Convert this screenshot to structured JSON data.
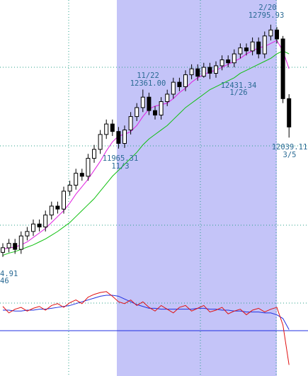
{
  "chart_data": [
    {
      "type": "candlestick",
      "categories": [
        null,
        null,
        null,
        null,
        null,
        null,
        null,
        null,
        null,
        null,
        null,
        null,
        null,
        null,
        null,
        null,
        null,
        null,
        null,
        null,
        null,
        null,
        null,
        null,
        null,
        null,
        null,
        null,
        null,
        null,
        null,
        null,
        null,
        null,
        null,
        null,
        null,
        null,
        null,
        null,
        null,
        null,
        null,
        null,
        null,
        null,
        null,
        null
      ],
      "open": [
        11270,
        11300,
        11330,
        11290,
        11380,
        11410,
        11460,
        11440,
        11520,
        11580,
        11560,
        11680,
        11720,
        11800,
        11780,
        11900,
        11960,
        12060,
        12130,
        12080,
        12000,
        12090,
        12180,
        12240,
        12310,
        12220,
        12190,
        12280,
        12330,
        12410,
        12380,
        12460,
        12500,
        12450,
        12510,
        12470,
        12520,
        12560,
        12540,
        12600,
        12640,
        12620,
        12680,
        12600,
        12720,
        12760,
        12700,
        12300
      ],
      "high": [
        11331,
        11360,
        11360,
        11410,
        11440,
        11490,
        11490,
        11550,
        11610,
        11610,
        11710,
        11750,
        11830,
        11830,
        11930,
        11990,
        12090,
        12160,
        12160,
        12110,
        12120,
        12210,
        12270,
        12361.0,
        12340,
        12250,
        12310,
        12360,
        12440,
        12440,
        12490,
        12530,
        12530,
        12540,
        12540,
        12550,
        12590,
        12590,
        12630,
        12670,
        12670,
        12710,
        12710,
        12750,
        12795.93,
        12780,
        12720,
        12330
      ],
      "low": [
        11240,
        11270,
        11260,
        11260,
        11350,
        11380,
        11410,
        11410,
        11490,
        11530,
        11530,
        11650,
        11690,
        11750,
        11750,
        11870,
        11930,
        12030,
        12050,
        11965.31,
        11970,
        12060,
        12150,
        12210,
        12190,
        12160,
        12160,
        12250,
        12300,
        12350,
        12350,
        12430,
        12420,
        12440,
        12431.34,
        12440,
        12490,
        12510,
        12510,
        12570,
        12590,
        12590,
        12570,
        12570,
        12690,
        12670,
        12270,
        12039.11
      ],
      "close": [
        11301,
        11330,
        11290,
        11380,
        11410,
        11460,
        11440,
        11520,
        11580,
        11560,
        11680,
        11720,
        11800,
        11780,
        11900,
        11960,
        12060,
        12130,
        12080,
        12000,
        12090,
        12180,
        12240,
        12310,
        12220,
        12190,
        12280,
        12330,
        12410,
        12380,
        12460,
        12500,
        12450,
        12510,
        12470,
        12520,
        12560,
        12540,
        12600,
        12640,
        12620,
        12680,
        12600,
        12720,
        12760,
        12700,
        12300,
        12110
      ],
      "overlays": [
        {
          "color": "#e020e0",
          "values": [
            11290,
            11300,
            11305,
            11320,
            11340,
            11370,
            11400,
            11430,
            11470,
            11510,
            11550,
            11600,
            11660,
            11710,
            11760,
            11820,
            11880,
            11950,
            12010,
            12050,
            12060,
            12080,
            12120,
            12180,
            12230,
            12250,
            12260,
            12270,
            12300,
            12340,
            12370,
            12410,
            12440,
            12460,
            12480,
            12490,
            12510,
            12530,
            12550,
            12570,
            12600,
            12620,
            12640,
            12650,
            12670,
            12690,
            12620,
            12500
          ]
        },
        {
          "color": "#10c010",
          "values": [
            11250,
            11265,
            11275,
            11290,
            11305,
            11320,
            11340,
            11360,
            11385,
            11410,
            11440,
            11470,
            11510,
            11550,
            11590,
            11630,
            11680,
            11730,
            11780,
            11820,
            11860,
            11900,
            11940,
            11990,
            12030,
            12060,
            12090,
            12120,
            12160,
            12200,
            12240,
            12270,
            12300,
            12330,
            12360,
            12380,
            12400,
            12420,
            12440,
            12470,
            12490,
            12510,
            12530,
            12550,
            12570,
            12600,
            12620,
            12600
          ]
        }
      ],
      "ylim": [
        11063,
        12961
      ],
      "annotations": [
        "2/20",
        "12795.93",
        "11/22",
        "12361.00",
        "12431.34",
        "1/26",
        "11965.31",
        "11/3",
        "12039.11",
        "3/5",
        "4.91",
        "46"
      ]
    },
    {
      "type": "line",
      "series": [
        {
          "color": "#2030e0",
          "values": [
            71,
            71,
            70,
            70,
            71,
            71,
            72,
            72,
            73,
            74,
            75,
            76,
            78,
            80,
            82,
            84,
            86,
            87,
            87,
            86,
            83,
            80,
            77,
            75,
            73,
            73,
            72,
            72,
            72,
            72,
            72,
            72,
            73,
            73,
            72,
            72,
            71,
            71,
            70,
            70,
            69,
            69,
            69,
            68,
            68,
            66,
            62,
            50
          ]
        },
        {
          "color": "#e01010",
          "values": [
            75,
            68,
            72,
            74,
            70,
            73,
            75,
            71,
            76,
            78,
            74,
            79,
            82,
            78,
            85,
            88,
            90,
            91,
            86,
            80,
            78,
            82,
            76,
            80,
            74,
            70,
            76,
            72,
            68,
            74,
            76,
            70,
            73,
            76,
            69,
            71,
            74,
            67,
            70,
            72,
            66,
            71,
            73,
            69,
            72,
            74,
            55,
            12
          ]
        }
      ],
      "ylim": [
        0,
        100
      ]
    }
  ]
}
